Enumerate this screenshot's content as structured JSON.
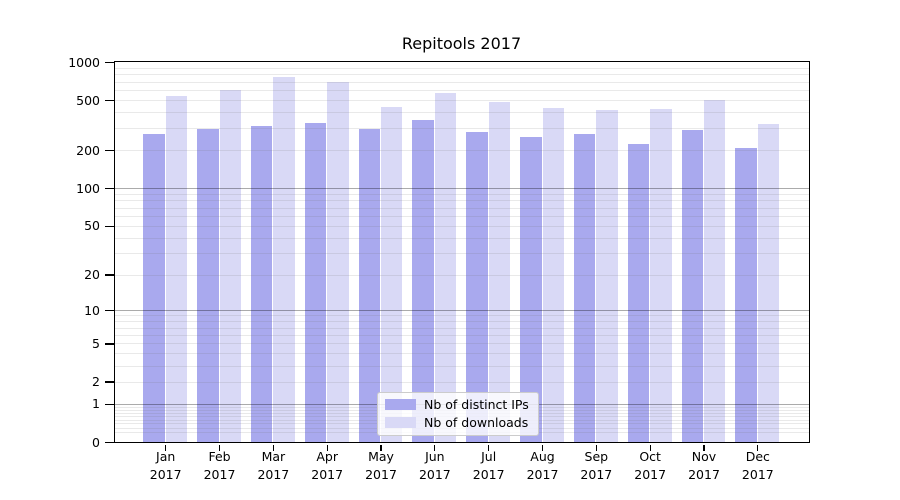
{
  "chart_data": {
    "type": "bar",
    "title": "Repitools 2017",
    "categories": [
      "Jan 2017",
      "Feb 2017",
      "Mar 2017",
      "Apr 2017",
      "May 2017",
      "Jun 2017",
      "Jul 2017",
      "Aug 2017",
      "Sep 2017",
      "Oct 2017",
      "Nov 2017",
      "Dec 2017"
    ],
    "series": [
      {
        "name": "Nb of distinct IPs",
        "color": "#a9a9ee",
        "values": [
          267,
          293,
          314,
          330,
          295,
          346,
          279,
          257,
          267,
          223,
          289,
          207
        ]
      },
      {
        "name": "Nb of downloads",
        "color": "#d9d9f6",
        "values": [
          536,
          597,
          756,
          696,
          442,
          573,
          487,
          431,
          421,
          427,
          498,
          321
        ]
      }
    ],
    "xlabel": "",
    "ylabel": "",
    "y_scale": "log10(value+1)",
    "ylim": [
      0,
      1000
    ],
    "y_ticks": [
      0,
      1,
      2,
      5,
      10,
      20,
      50,
      100,
      200,
      500,
      1000
    ],
    "grid": "major decade lines dark, minor log lines faint, drawn over bars",
    "legend_position": "bottom-center"
  },
  "colors": {
    "background": "#ffffff",
    "axis": "#000000",
    "grid_major": "rgba(0,0,0,0.33)",
    "grid_minor": "rgba(120,120,120,0.16)",
    "legend_border": "#cccccc",
    "legend_background": "rgba(255,255,255,0.8)"
  }
}
